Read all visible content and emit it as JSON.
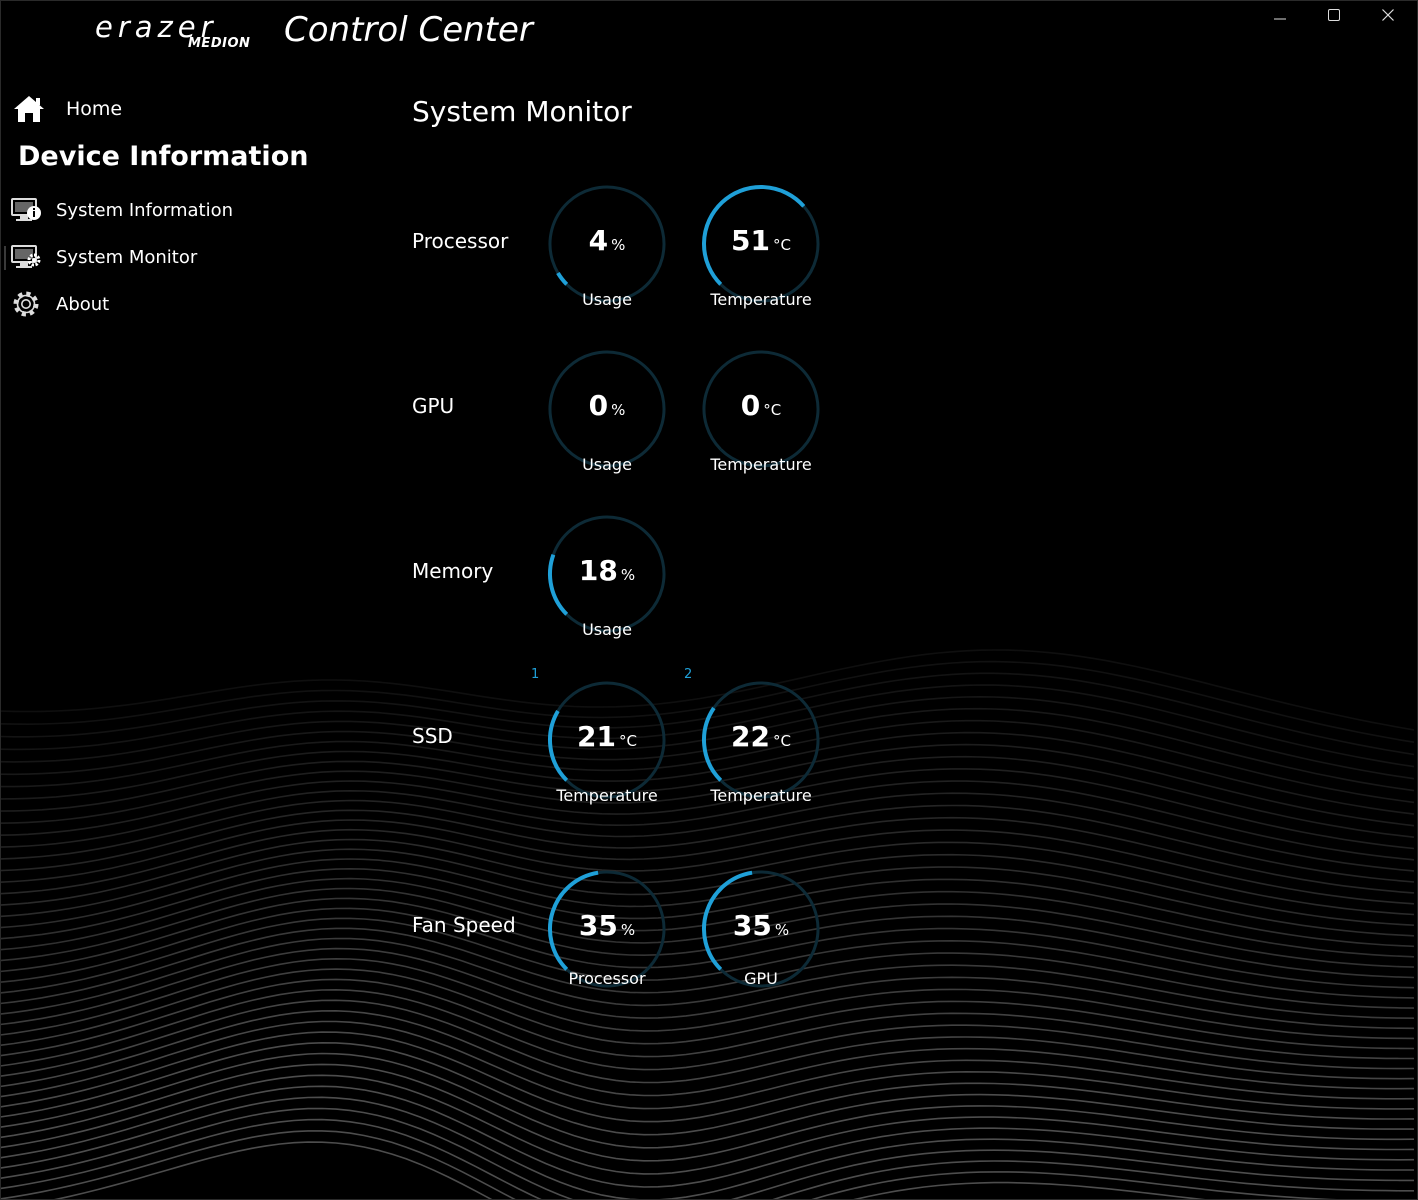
{
  "window": {
    "title": "Control Center",
    "logo_brand": "erazer",
    "logo_sub": "MEDION",
    "controls": [
      "minimize",
      "maximize",
      "close"
    ]
  },
  "sidebar": {
    "home_label": "Home",
    "section_title": "Device Information",
    "items": [
      {
        "label": "System Information",
        "icon": "monitor-info-icon"
      },
      {
        "label": "System Monitor",
        "icon": "monitor-gear-icon",
        "active": true
      },
      {
        "label": "About",
        "icon": "gear-icon"
      }
    ]
  },
  "main": {
    "title": "System Monitor",
    "rows": [
      {
        "label": "Processor",
        "gauges": [
          {
            "value": "4",
            "unit": "%",
            "label": "Usage",
            "fill": 0.04
          },
          {
            "value": "51",
            "unit": "°C",
            "label": "Temperature",
            "fill": 0.51
          }
        ]
      },
      {
        "label": "GPU",
        "gauges": [
          {
            "value": "0",
            "unit": "%",
            "label": "Usage",
            "fill": 0
          },
          {
            "value": "0",
            "unit": "°C",
            "label": "Temperature",
            "fill": 0
          }
        ]
      },
      {
        "label": "Memory",
        "gauges": [
          {
            "value": "18",
            "unit": "%",
            "label": "Usage",
            "fill": 0.18
          }
        ]
      },
      {
        "label": "SSD",
        "gauges": [
          {
            "index": "1",
            "value": "21",
            "unit": "°C",
            "label": "Temperature",
            "fill": 0.21
          },
          {
            "index": "2",
            "value": "22",
            "unit": "°C",
            "label": "Temperature",
            "fill": 0.22
          }
        ]
      },
      {
        "label": "Fan Speed",
        "gauges": [
          {
            "value": "35",
            "unit": "%",
            "label": "Processor",
            "fill": 0.35
          },
          {
            "value": "35",
            "unit": "%",
            "label": "GPU",
            "fill": 0.35
          }
        ]
      }
    ]
  },
  "colors": {
    "background": "#000000",
    "accent": "#1fa0d8",
    "gauge_track": "#0d2a36",
    "text": "#ffffff"
  }
}
